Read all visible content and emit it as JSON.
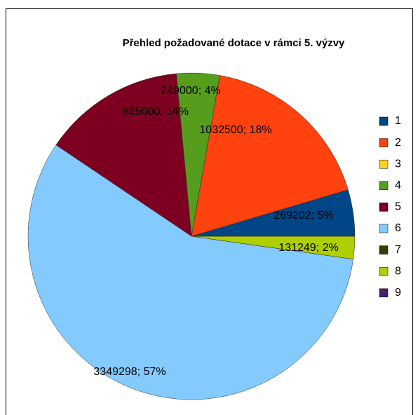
{
  "chart_data": {
    "type": "pie",
    "title": "Přehled požadované dotace v rámci 5. výzvy",
    "categories": [
      "1",
      "2",
      "3",
      "4",
      "5",
      "6",
      "7",
      "8",
      "9"
    ],
    "values": [
      269202,
      1032500,
      0,
      249000,
      825000,
      3349298,
      0,
      131249,
      0
    ],
    "value_labels": [
      "269202; 5%",
      "1032500; 18%",
      null,
      "249000; 4%",
      "825000; 14%",
      "3349298; 57%",
      null,
      "131249; 2%",
      null
    ],
    "colors": [
      "#004586",
      "#ff420e",
      "#ffd320",
      "#579d1c",
      "#7e0021",
      "#83caff",
      "#314004",
      "#aecf00",
      "#4b1f6f"
    ],
    "legend": "right"
  }
}
